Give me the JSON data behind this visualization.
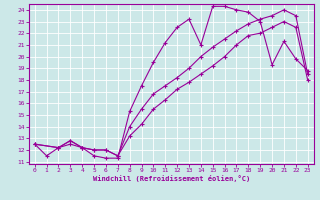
{
  "xlabel": "Windchill (Refroidissement éolien,°C)",
  "bg_color": "#cce8e8",
  "line_color": "#990099",
  "xlim": [
    -0.5,
    23.5
  ],
  "ylim": [
    10.8,
    24.5
  ],
  "xticks": [
    0,
    1,
    2,
    3,
    4,
    5,
    6,
    7,
    8,
    9,
    10,
    11,
    12,
    13,
    14,
    15,
    16,
    17,
    18,
    19,
    20,
    21,
    22,
    23
  ],
  "yticks": [
    11,
    12,
    13,
    14,
    15,
    16,
    17,
    18,
    19,
    20,
    21,
    22,
    23,
    24
  ],
  "line1_x": [
    0,
    1,
    2,
    3,
    4,
    5,
    6,
    7,
    8,
    9,
    10,
    11,
    12,
    13,
    14,
    15,
    16,
    17,
    18,
    19,
    20,
    21,
    22,
    23
  ],
  "line1_y": [
    12.5,
    11.5,
    12.2,
    12.5,
    12.2,
    11.5,
    11.3,
    11.3,
    15.3,
    17.5,
    19.5,
    21.2,
    22.5,
    23.2,
    21.0,
    24.3,
    24.3,
    24.0,
    23.8,
    23.0,
    19.3,
    21.3,
    19.8,
    18.8
  ],
  "line2_x": [
    0,
    2,
    3,
    4,
    5,
    6,
    7,
    8,
    9,
    10,
    11,
    12,
    13,
    14,
    15,
    16,
    17,
    18,
    19,
    20,
    21,
    22,
    23
  ],
  "line2_y": [
    12.5,
    12.2,
    12.8,
    12.2,
    12.0,
    12.0,
    11.5,
    13.2,
    14.2,
    15.5,
    16.3,
    17.2,
    17.8,
    18.5,
    19.2,
    20.0,
    21.0,
    21.8,
    22.0,
    22.5,
    23.0,
    22.5,
    18.0
  ],
  "line3_x": [
    0,
    2,
    3,
    4,
    5,
    6,
    7,
    8,
    9,
    10,
    11,
    12,
    13,
    14,
    15,
    16,
    17,
    18,
    19,
    20,
    21,
    22,
    23
  ],
  "line3_y": [
    12.5,
    12.2,
    12.8,
    12.2,
    12.0,
    12.0,
    11.5,
    14.0,
    15.5,
    16.8,
    17.5,
    18.2,
    19.0,
    20.0,
    20.8,
    21.5,
    22.2,
    22.8,
    23.2,
    23.5,
    24.0,
    23.5,
    18.5
  ]
}
